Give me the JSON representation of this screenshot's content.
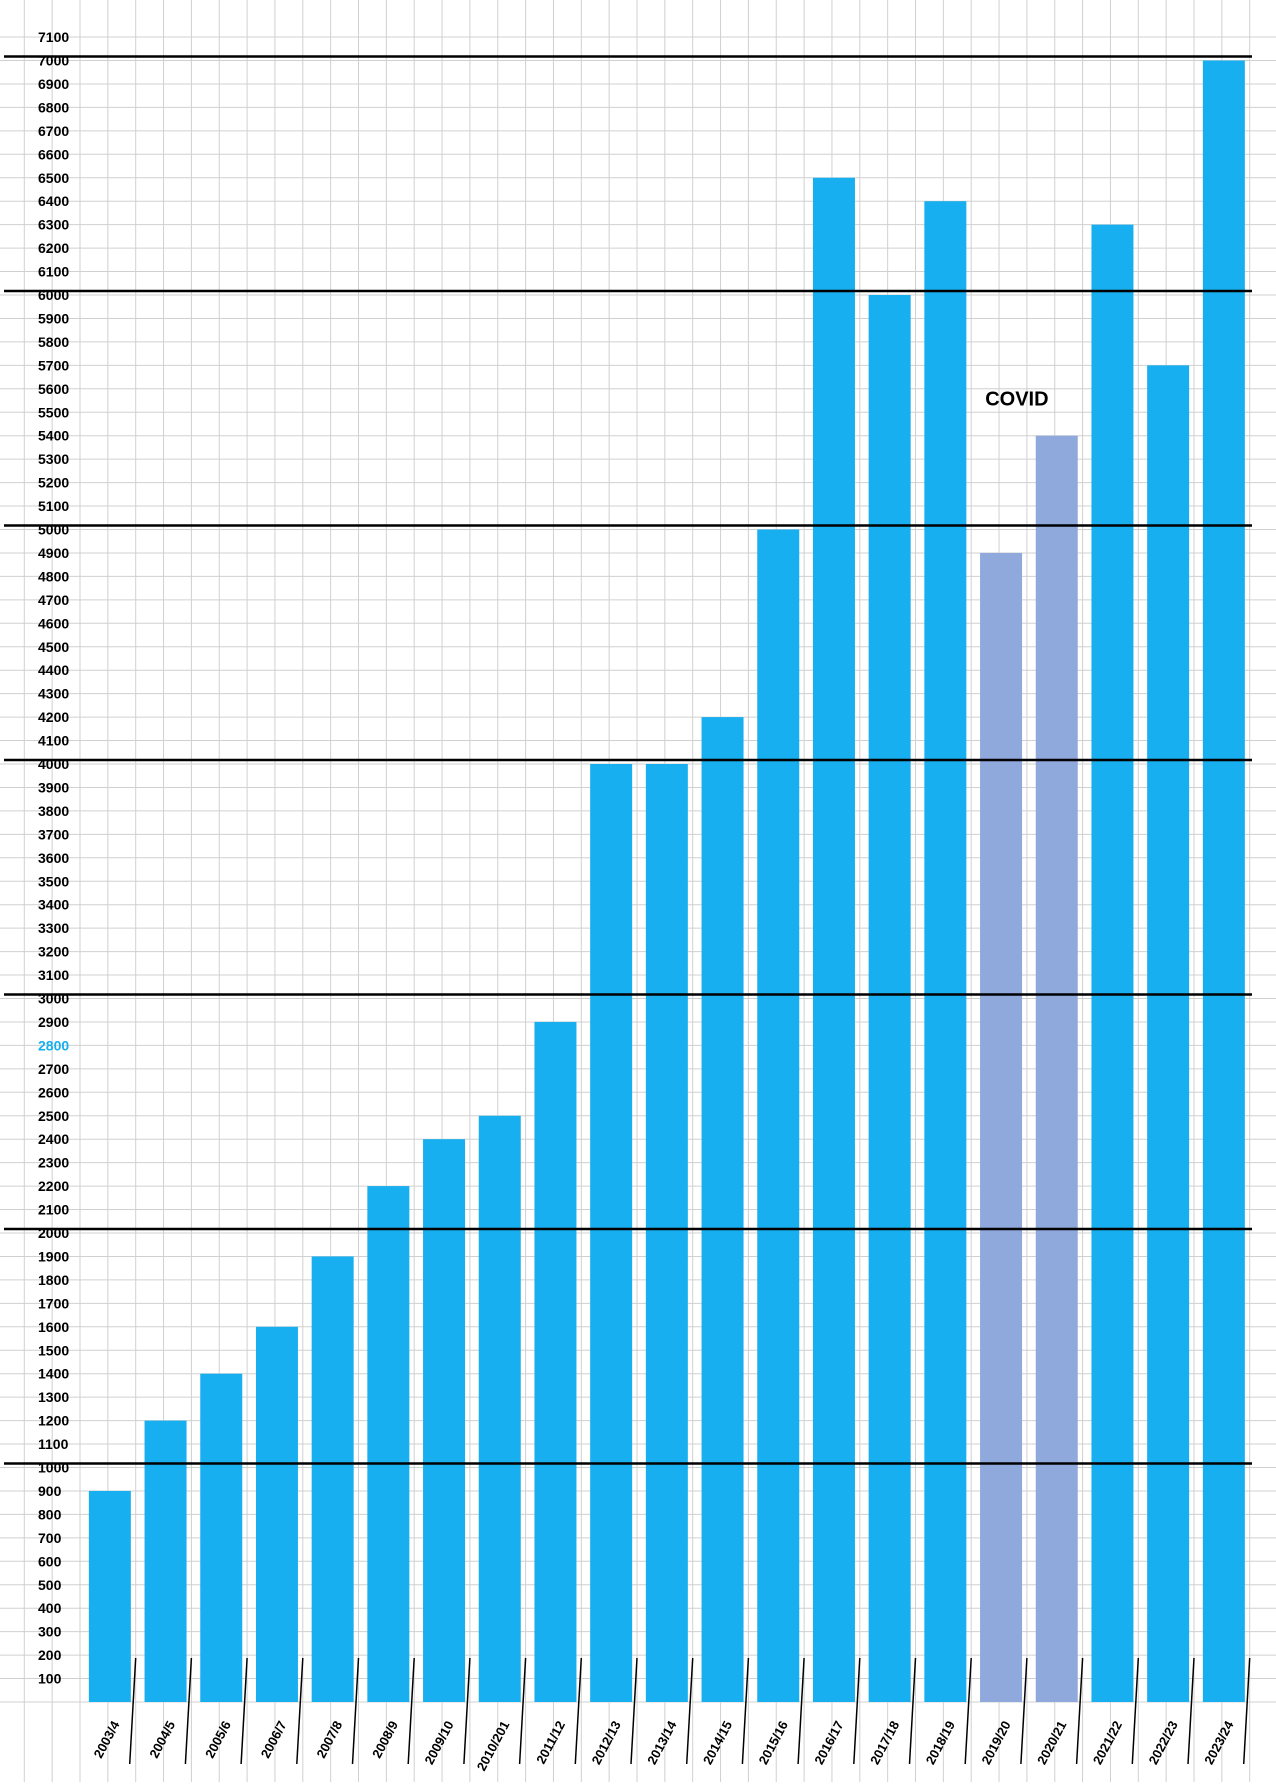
{
  "chart_data": {
    "type": "bar",
    "title": "",
    "xlabel": "",
    "ylabel": "",
    "ylim": [
      0,
      7100
    ],
    "yticks": [
      100,
      200,
      300,
      400,
      500,
      600,
      700,
      800,
      900,
      1000,
      1100,
      1200,
      1300,
      1400,
      1500,
      1600,
      1700,
      1800,
      1900,
      2000,
      2100,
      2200,
      2300,
      2400,
      2500,
      2600,
      2700,
      2800,
      2900,
      3000,
      3100,
      3200,
      3300,
      3400,
      3500,
      3600,
      3700,
      3800,
      3900,
      4000,
      4100,
      4200,
      4300,
      4400,
      4500,
      4600,
      4700,
      4800,
      4900,
      5000,
      5100,
      5200,
      5300,
      5400,
      5500,
      5600,
      5700,
      5800,
      5900,
      6000,
      6100,
      6200,
      6300,
      6400,
      6500,
      6600,
      6700,
      6800,
      6900,
      7000,
      7100
    ],
    "highlighted_tick": 2800,
    "thick_gridlines": [
      1000,
      2000,
      3000,
      4000,
      5000,
      6000,
      7000
    ],
    "grid": true,
    "categories": [
      "2003/4",
      "2004/5",
      "2005/6",
      "2006/7",
      "2007/8",
      "2008/9",
      "2009/10",
      "2010/201",
      "2011/12",
      "2012/13",
      "2013/14",
      "2014/15",
      "2015/16",
      "2016/17",
      "2017/18",
      "2018/19",
      "2019/20",
      "2020/21",
      "2021/22",
      "2022/23",
      "2023/24"
    ],
    "values": [
      900,
      1200,
      1400,
      1600,
      1900,
      2200,
      2400,
      2500,
      2900,
      4000,
      4000,
      4200,
      5000,
      6500,
      6000,
      6400,
      4900,
      5400,
      6300,
      5700,
      7000
    ],
    "highlight": [
      "2019/20",
      "2020/21"
    ],
    "annotations": [
      {
        "text": "COVID",
        "category": "2020/21"
      }
    ],
    "colors": {
      "bar": "#17AFEF",
      "bar_highlight": "#8FA9DC",
      "grid": "#D0D0D0",
      "thick_line": "#000000",
      "tick_highlight": "#17AFEF"
    }
  }
}
